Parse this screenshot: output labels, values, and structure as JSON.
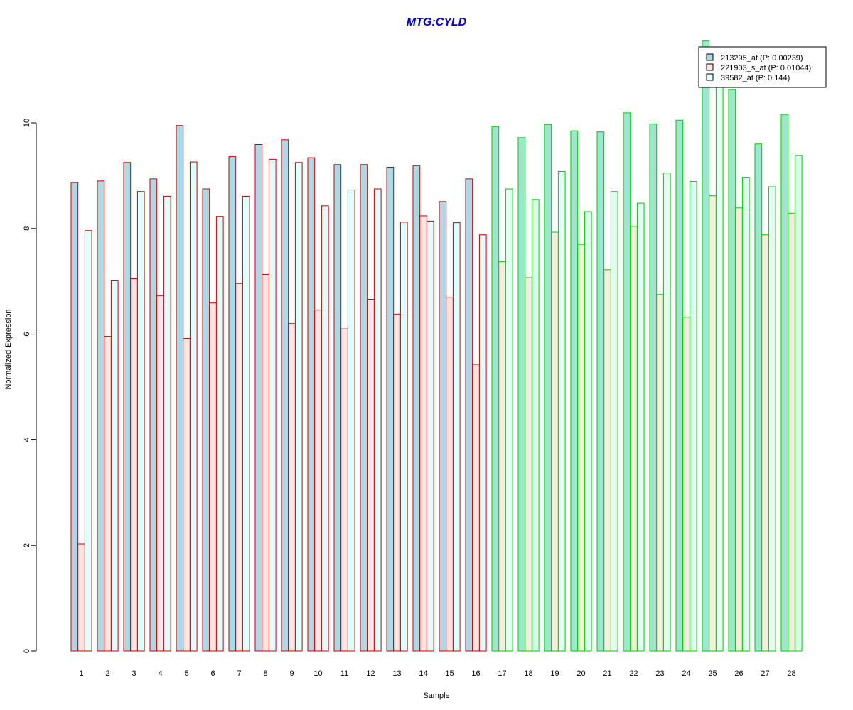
{
  "chart_data": {
    "type": "bar",
    "title": "MTG:CYLD",
    "xlabel": "Sample",
    "ylabel": "Normalized Expression",
    "ylim": [
      0,
      11.6
    ],
    "yticks": [
      0,
      2,
      4,
      6,
      8,
      10
    ],
    "categories": [
      "1",
      "2",
      "3",
      "4",
      "5",
      "6",
      "7",
      "8",
      "9",
      "10",
      "11",
      "12",
      "13",
      "14",
      "15",
      "16",
      "17",
      "18",
      "19",
      "20",
      "21",
      "22",
      "23",
      "24",
      "25",
      "26",
      "27",
      "28"
    ],
    "group_colors": {
      "group_a": {
        "samples": [
          1,
          16
        ],
        "border": "#cc0000"
      },
      "group_b": {
        "samples": [
          17,
          28
        ],
        "border": "#00cc00"
      }
    },
    "series": [
      {
        "name": "213295_at (P: 0.00239)",
        "fill_a": "#add8e6",
        "fill_b": "#a0e4d2",
        "values": [
          8.87,
          8.9,
          9.25,
          8.94,
          9.95,
          8.75,
          9.36,
          9.59,
          9.68,
          9.34,
          9.21,
          9.21,
          9.16,
          9.19,
          8.51,
          8.94,
          9.93,
          9.72,
          9.97,
          9.85,
          9.83,
          10.19,
          9.98,
          10.05,
          11.55,
          10.63,
          9.6,
          10.16
        ]
      },
      {
        "name": "221903_s_at (P: 0.01044)",
        "fill_a": "#ffe4e1",
        "fill_b": "#f5eedc",
        "values": [
          2.03,
          5.96,
          7.05,
          6.73,
          5.92,
          6.59,
          6.96,
          7.13,
          6.2,
          6.46,
          6.1,
          6.66,
          6.38,
          8.24,
          6.7,
          5.43,
          7.37,
          7.07,
          7.93,
          7.7,
          7.22,
          8.04,
          6.75,
          6.32,
          8.62,
          8.39,
          7.88,
          8.29
        ]
      },
      {
        "name": "39582_at (P: 0.144)",
        "fill_a": "#e0ffff",
        "fill_b": "#e0fff0",
        "values": [
          7.96,
          7.01,
          8.7,
          8.61,
          9.26,
          8.23,
          8.61,
          9.31,
          9.25,
          8.43,
          8.73,
          8.75,
          8.12,
          8.14,
          8.11,
          7.88,
          8.75,
          8.55,
          9.08,
          8.32,
          8.7,
          8.48,
          9.05,
          8.89,
          10.72,
          8.97,
          8.79,
          9.38
        ]
      }
    ],
    "legend_position": "top-right",
    "grid": false,
    "title_color": "#0000cc"
  }
}
